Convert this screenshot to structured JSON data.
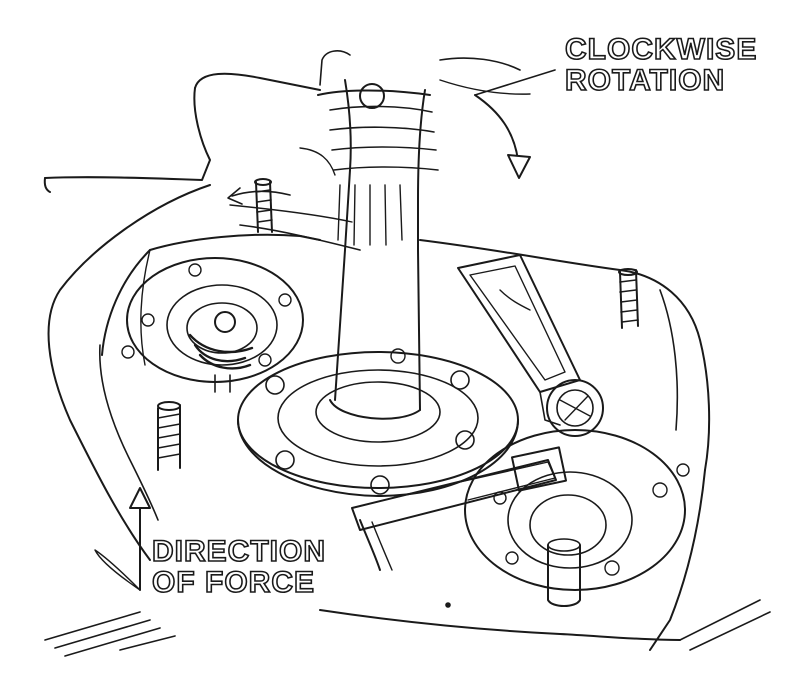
{
  "labels": {
    "clockwise": {
      "line1": "CLOCKWISE",
      "line2": "ROTATION"
    },
    "force": {
      "line1": "DIRECTION",
      "line2": "OF FORCE"
    }
  },
  "colors": {
    "ink": "#1a1a1a",
    "paper": "#ffffff"
  }
}
